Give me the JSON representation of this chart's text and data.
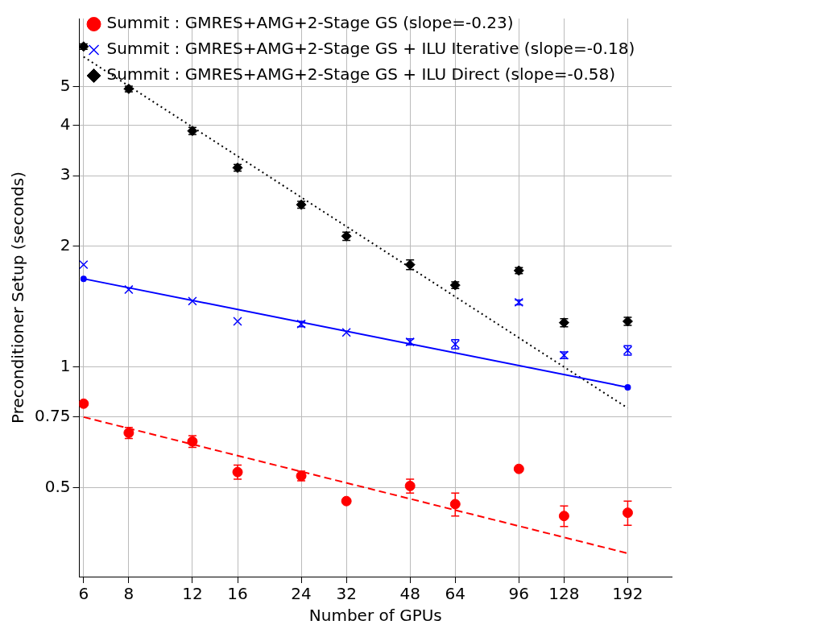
{
  "chart_data": {
    "type": "scatter",
    "xlabel": "Number of GPUs",
    "ylabel": "Preconditioner Setup (seconds)",
    "log": "xy",
    "grid": true,
    "legend": "top right",
    "x": [
      6,
      8,
      12,
      16,
      24,
      32,
      48,
      64,
      96,
      128,
      192
    ],
    "xlim": [
      5.84,
      254
    ],
    "xticks": [
      6,
      8,
      12,
      16,
      24,
      32,
      48,
      64,
      96,
      128,
      192
    ],
    "ylim": [
      0.3,
      7.4
    ],
    "yticks": [
      0.5,
      0.75,
      1,
      2,
      3,
      4,
      5
    ],
    "series": [
      {
        "name": "Summit : GMRES+AMG+2-Stage GS (slope=-0.23)",
        "color": "#ff0000",
        "marker": "circle",
        "values": [
          0.81,
          0.685,
          0.652,
          0.547,
          0.535,
          0.463,
          0.505,
          0.455,
          0.557,
          0.425,
          0.433
        ],
        "errors": [
          null,
          0.022,
          0.022,
          0.022,
          0.015,
          null,
          0.02,
          0.03,
          null,
          0.025,
          0.03
        ]
      },
      {
        "name": "Summit : GMRES+AMG+2-Stage GS + ILU Iterative (slope=-0.18)",
        "color": "#0000ff",
        "marker": "cross",
        "values": [
          1.8,
          1.56,
          1.46,
          1.3,
          1.28,
          1.22,
          1.155,
          1.14,
          1.45,
          1.07,
          1.1
        ],
        "errors": [
          null,
          null,
          null,
          null,
          0.02,
          null,
          0.02,
          0.03,
          0.02,
          0.02,
          0.03
        ]
      },
      {
        "name": "Summit : GMRES+AMG+2-Stage GS + ILU Direct (slope=-0.58)",
        "color": "#000000",
        "marker": "diamond",
        "values": [
          6.3,
          4.94,
          3.88,
          3.14,
          2.54,
          2.12,
          1.8,
          1.6,
          1.74,
          1.29,
          1.3
        ],
        "errors": [
          0.1,
          0.08,
          0.08,
          0.06,
          0.05,
          0.05,
          0.05,
          0.03,
          0.03,
          0.03,
          0.03
        ]
      },
      {
        "type": "line",
        "color": "#ff0000",
        "marker": "none",
        "line_style": "dashed",
        "values": [
          0.75,
          null,
          null,
          null,
          null,
          null,
          null,
          null,
          null,
          null,
          0.343
        ]
      },
      {
        "type": "line",
        "color": "#0000ff",
        "marker": "circle",
        "line_style": "solid",
        "values": [
          1.66,
          null,
          null,
          null,
          null,
          null,
          null,
          null,
          null,
          null,
          0.89
        ]
      },
      {
        "type": "line",
        "color": "#000000",
        "marker": "none",
        "line_style": "dotted",
        "values": [
          5.94,
          null,
          null,
          null,
          null,
          null,
          null,
          null,
          null,
          null,
          0.79
        ]
      }
    ]
  }
}
